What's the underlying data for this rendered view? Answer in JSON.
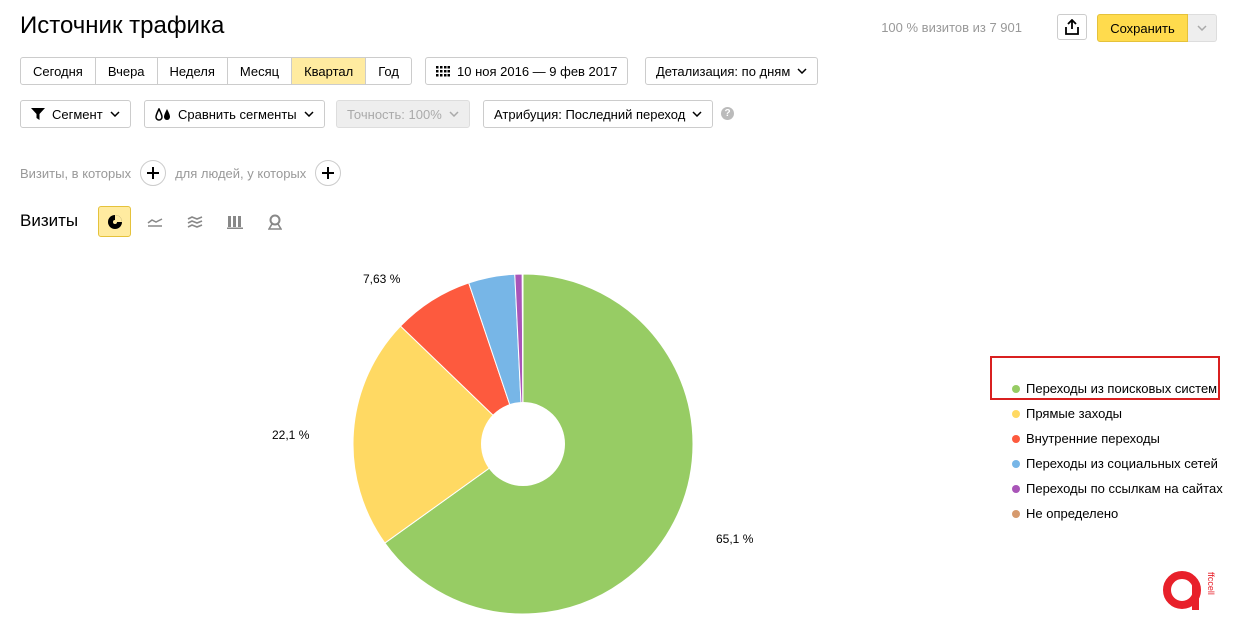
{
  "header": {
    "title": "Источник трафика",
    "visits_info": "100 % визитов из 7 901",
    "save_label": "Сохранить"
  },
  "periods": [
    {
      "label": "Сегодня",
      "active": false
    },
    {
      "label": "Вчера",
      "active": false
    },
    {
      "label": "Неделя",
      "active": false
    },
    {
      "label": "Месяц",
      "active": false
    },
    {
      "label": "Квартал",
      "active": true
    },
    {
      "label": "Год",
      "active": false
    }
  ],
  "date_range": "10 ноя 2016 — 9 фев 2017",
  "detail": "Детализация: по дням",
  "toolbar": {
    "segment": "Сегмент",
    "compare": "Сравнить сегменты",
    "accuracy": "Точность: 100%",
    "attribution": "Атрибуция: Последний переход"
  },
  "filters": {
    "visits_where": "Визиты, в которых",
    "people_where": "для людей, у которых"
  },
  "section": {
    "title": "Визиты"
  },
  "chart_data": {
    "type": "pie",
    "donut": true,
    "slices": [
      {
        "label": "Переходы из поисковых систем",
        "value": 65.1,
        "color": "#97cc64"
      },
      {
        "label": "Прямые заходы",
        "value": 22.1,
        "color": "#ffd963"
      },
      {
        "label": "Внутренние переходы",
        "value": 7.63,
        "color": "#fd5a3e"
      },
      {
        "label": "Переходы из социальных сетей",
        "value": 4.4,
        "color": "#77b6e7"
      },
      {
        "label": "Переходы по ссылкам на сайтах",
        "value": 0.7,
        "color": "#a955b8"
      },
      {
        "label": "Не определено",
        "value": 0.07,
        "color": "#d69a6e"
      }
    ],
    "data_labels": [
      "65,1 %",
      "22,1 %",
      "7,63 %"
    ],
    "legend_position": "right"
  },
  "highlighted_legend_item": "Переходы из поисковых систем",
  "logo": {
    "text": "ffccell",
    "color": "#e8202a"
  }
}
